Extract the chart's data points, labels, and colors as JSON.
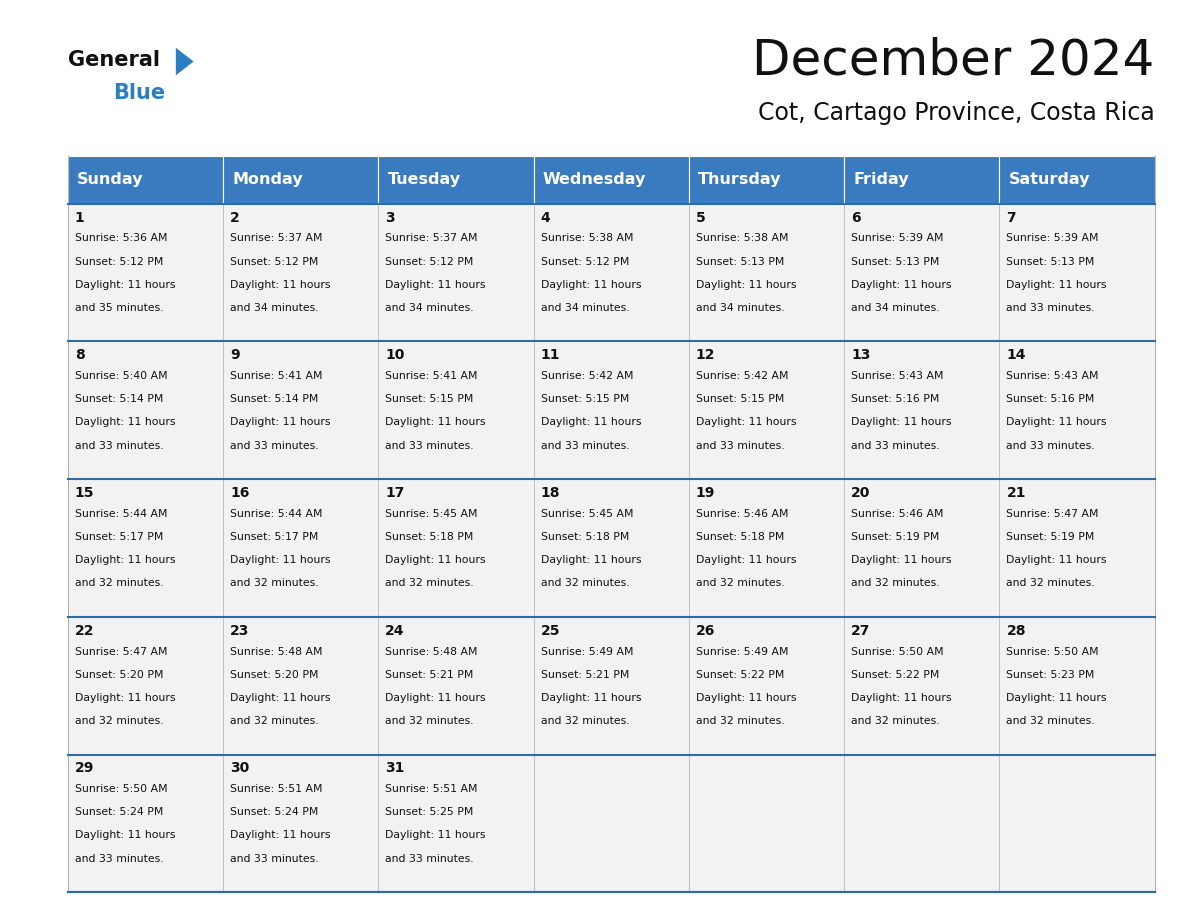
{
  "title": "December 2024",
  "subtitle": "Cot, Cartago Province, Costa Rica",
  "header_color": "#3a7bbf",
  "header_text_color": "#ffffff",
  "cell_bg_color": "#f2f2f2",
  "cell_bg_alt": "#ffffff",
  "border_color": "#2e6da4",
  "cell_border_color": "#aaaaaa",
  "days_of_week": [
    "Sunday",
    "Monday",
    "Tuesday",
    "Wednesday",
    "Thursday",
    "Friday",
    "Saturday"
  ],
  "calendar": [
    [
      {
        "day": 1,
        "sunrise": "5:36 AM",
        "sunset": "5:12 PM",
        "dl_min": "35"
      },
      {
        "day": 2,
        "sunrise": "5:37 AM",
        "sunset": "5:12 PM",
        "dl_min": "34"
      },
      {
        "day": 3,
        "sunrise": "5:37 AM",
        "sunset": "5:12 PM",
        "dl_min": "34"
      },
      {
        "day": 4,
        "sunrise": "5:38 AM",
        "sunset": "5:12 PM",
        "dl_min": "34"
      },
      {
        "day": 5,
        "sunrise": "5:38 AM",
        "sunset": "5:13 PM",
        "dl_min": "34"
      },
      {
        "day": 6,
        "sunrise": "5:39 AM",
        "sunset": "5:13 PM",
        "dl_min": "34"
      },
      {
        "day": 7,
        "sunrise": "5:39 AM",
        "sunset": "5:13 PM",
        "dl_min": "33"
      }
    ],
    [
      {
        "day": 8,
        "sunrise": "5:40 AM",
        "sunset": "5:14 PM",
        "dl_min": "33"
      },
      {
        "day": 9,
        "sunrise": "5:41 AM",
        "sunset": "5:14 PM",
        "dl_min": "33"
      },
      {
        "day": 10,
        "sunrise": "5:41 AM",
        "sunset": "5:15 PM",
        "dl_min": "33"
      },
      {
        "day": 11,
        "sunrise": "5:42 AM",
        "sunset": "5:15 PM",
        "dl_min": "33"
      },
      {
        "day": 12,
        "sunrise": "5:42 AM",
        "sunset": "5:15 PM",
        "dl_min": "33"
      },
      {
        "day": 13,
        "sunrise": "5:43 AM",
        "sunset": "5:16 PM",
        "dl_min": "33"
      },
      {
        "day": 14,
        "sunrise": "5:43 AM",
        "sunset": "5:16 PM",
        "dl_min": "33"
      }
    ],
    [
      {
        "day": 15,
        "sunrise": "5:44 AM",
        "sunset": "5:17 PM",
        "dl_min": "32"
      },
      {
        "day": 16,
        "sunrise": "5:44 AM",
        "sunset": "5:17 PM",
        "dl_min": "32"
      },
      {
        "day": 17,
        "sunrise": "5:45 AM",
        "sunset": "5:18 PM",
        "dl_min": "32"
      },
      {
        "day": 18,
        "sunrise": "5:45 AM",
        "sunset": "5:18 PM",
        "dl_min": "32"
      },
      {
        "day": 19,
        "sunrise": "5:46 AM",
        "sunset": "5:18 PM",
        "dl_min": "32"
      },
      {
        "day": 20,
        "sunrise": "5:46 AM",
        "sunset": "5:19 PM",
        "dl_min": "32"
      },
      {
        "day": 21,
        "sunrise": "5:47 AM",
        "sunset": "5:19 PM",
        "dl_min": "32"
      }
    ],
    [
      {
        "day": 22,
        "sunrise": "5:47 AM",
        "sunset": "5:20 PM",
        "dl_min": "32"
      },
      {
        "day": 23,
        "sunrise": "5:48 AM",
        "sunset": "5:20 PM",
        "dl_min": "32"
      },
      {
        "day": 24,
        "sunrise": "5:48 AM",
        "sunset": "5:21 PM",
        "dl_min": "32"
      },
      {
        "day": 25,
        "sunrise": "5:49 AM",
        "sunset": "5:21 PM",
        "dl_min": "32"
      },
      {
        "day": 26,
        "sunrise": "5:49 AM",
        "sunset": "5:22 PM",
        "dl_min": "32"
      },
      {
        "day": 27,
        "sunrise": "5:50 AM",
        "sunset": "5:22 PM",
        "dl_min": "32"
      },
      {
        "day": 28,
        "sunrise": "5:50 AM",
        "sunset": "5:23 PM",
        "dl_min": "32"
      }
    ],
    [
      {
        "day": 29,
        "sunrise": "5:50 AM",
        "sunset": "5:24 PM",
        "dl_min": "33"
      },
      {
        "day": 30,
        "sunrise": "5:51 AM",
        "sunset": "5:24 PM",
        "dl_min": "33"
      },
      {
        "day": 31,
        "sunrise": "5:51 AM",
        "sunset": "5:25 PM",
        "dl_min": "33"
      },
      null,
      null,
      null,
      null
    ]
  ],
  "bg_color": "#ffffff",
  "title_fontsize": 36,
  "subtitle_fontsize": 17,
  "header_fontsize": 11.5,
  "day_num_fontsize": 10,
  "cell_text_fontsize": 7.8
}
